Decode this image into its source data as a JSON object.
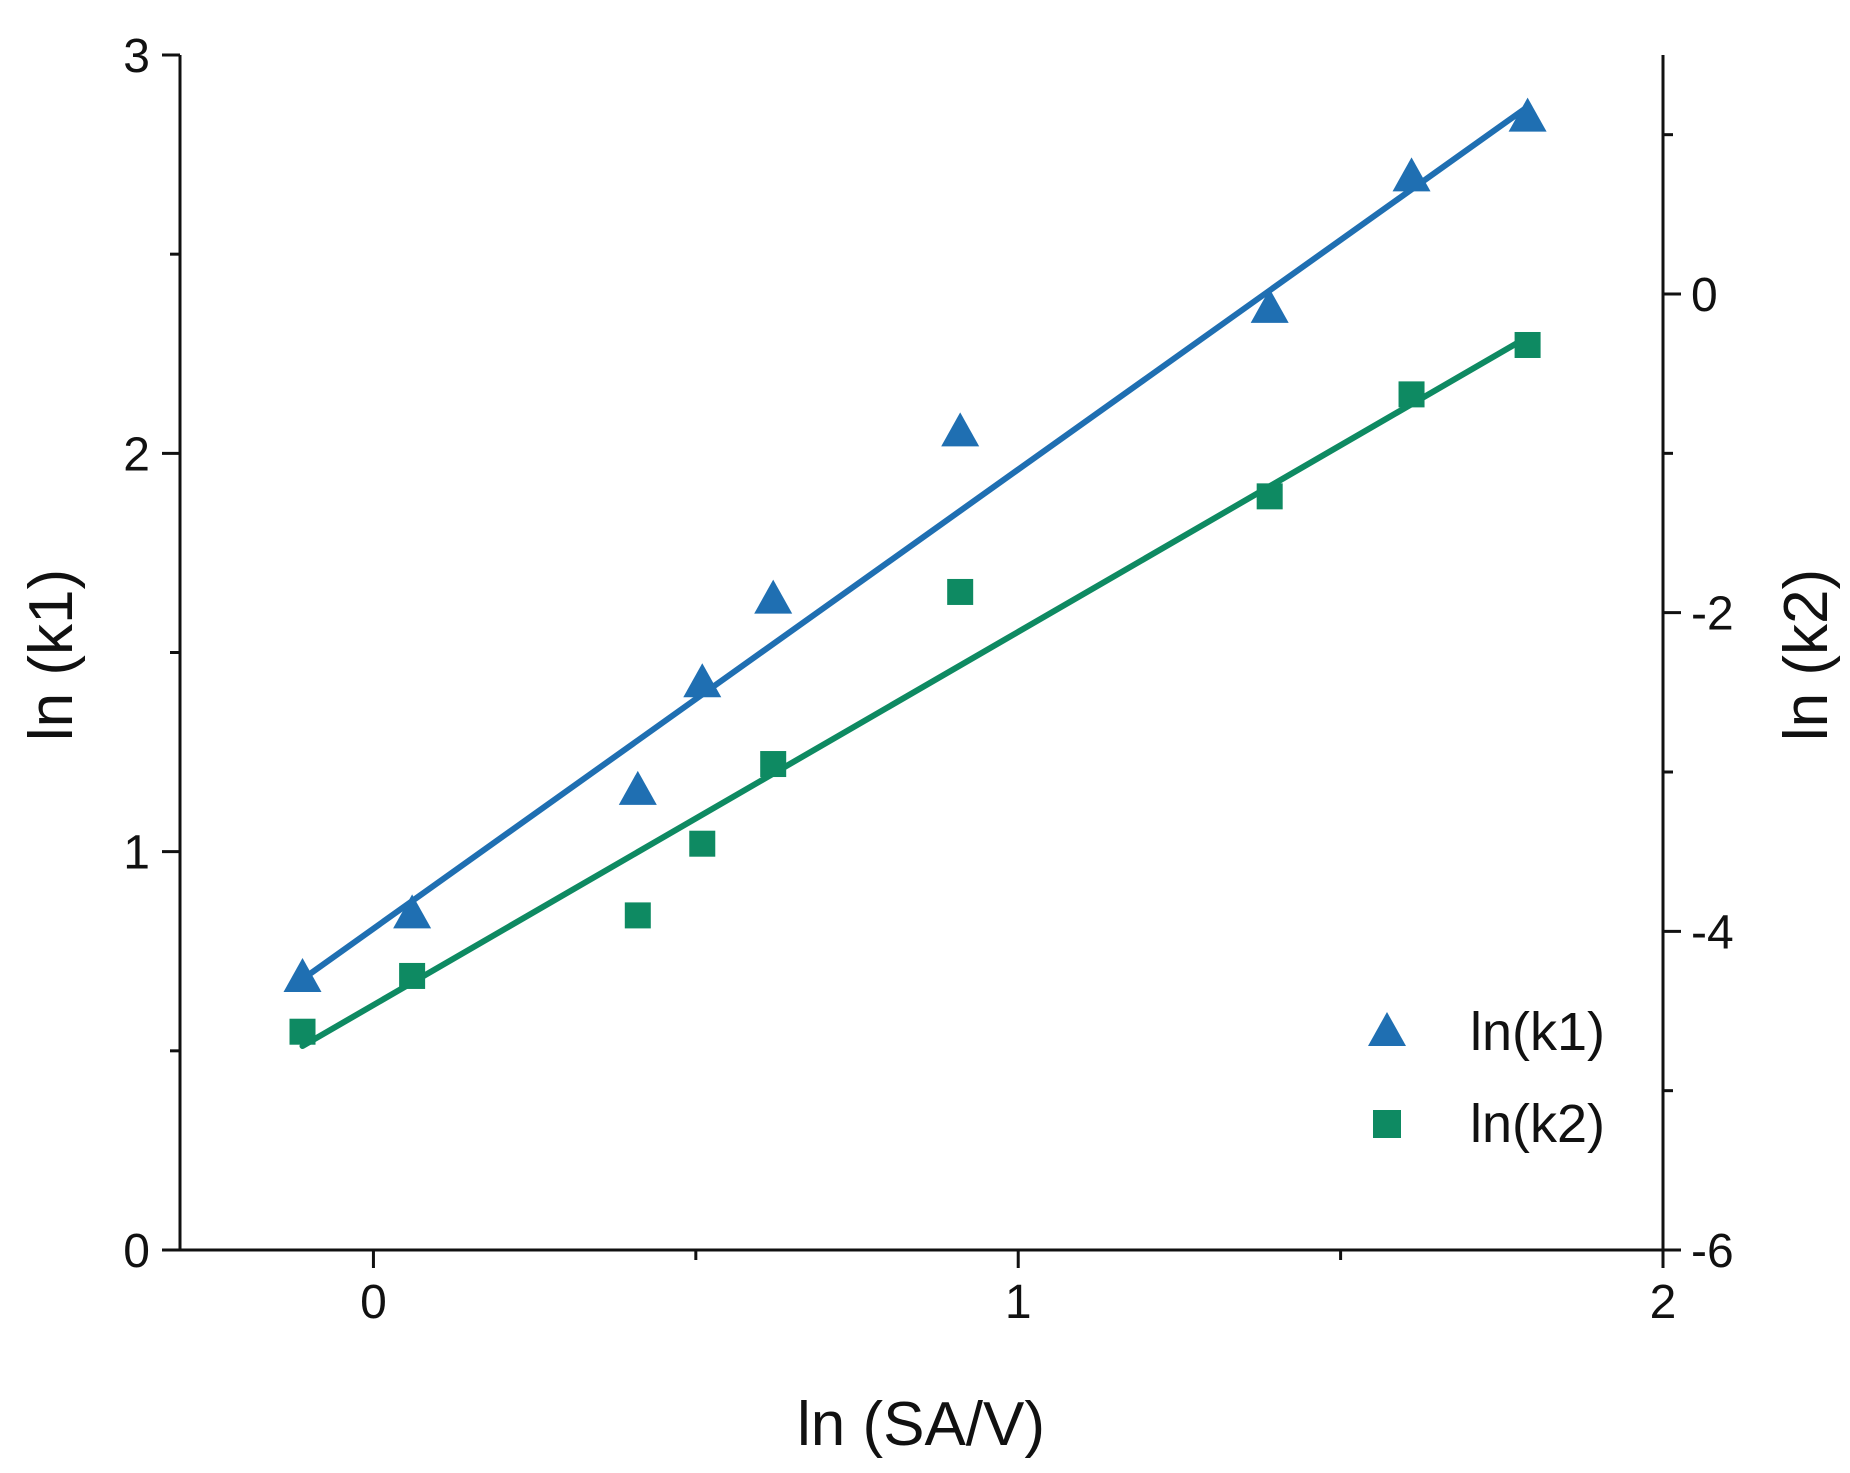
{
  "chart_data": {
    "type": "scatter",
    "title": "",
    "xlabel": "ln (SA/V)",
    "ylabel": "ln (k1)",
    "y2label": "ln (k2)",
    "xlim": [
      -0.3,
      2.0
    ],
    "ylim": [
      0,
      3
    ],
    "y2lim": [
      -6,
      1.5
    ],
    "x_ticks": [
      0,
      1,
      2
    ],
    "x_tick_labels": [
      "0",
      "1",
      "2"
    ],
    "x_minor_ticks": [
      0.5,
      1.5
    ],
    "y_ticks": [
      0,
      1,
      2,
      3
    ],
    "y_tick_labels": [
      "0",
      "1",
      "2",
      "3"
    ],
    "y_minor_ticks": [
      0.5,
      1.5,
      2.5
    ],
    "y2_ticks": [
      -6,
      -4,
      -2,
      0
    ],
    "y2_tick_labels": [
      "-6",
      "-4",
      "-2",
      "0"
    ],
    "y2_minor_ticks": [
      -5,
      -3,
      -1,
      1
    ],
    "legend_position": "bottom-right",
    "series": [
      {
        "name": "ln(k1)",
        "axis": "left",
        "marker": "triangle",
        "color": "#1f6fb2",
        "x": [
          -0.11,
          0.06,
          0.41,
          0.51,
          0.62,
          0.91,
          1.39,
          1.61,
          1.79
        ],
        "y": [
          0.68,
          0.84,
          1.15,
          1.42,
          1.63,
          2.05,
          2.36,
          2.69,
          2.84
        ],
        "fit": {
          "x": [
            -0.11,
            1.79
          ],
          "y": [
            0.68,
            2.87
          ]
        }
      },
      {
        "name": "ln(k2)",
        "axis": "right",
        "marker": "square",
        "color": "#0e8a62",
        "x": [
          -0.11,
          0.06,
          0.41,
          0.51,
          0.62,
          0.91,
          1.39,
          1.61,
          1.79
        ],
        "y": [
          -4.63,
          -4.28,
          -3.9,
          -3.45,
          -2.95,
          -1.87,
          -1.27,
          -0.63,
          -0.32
        ],
        "fit": {
          "x": [
            -0.11,
            1.79
          ],
          "y": [
            -4.72,
            -0.27
          ]
        }
      }
    ]
  }
}
